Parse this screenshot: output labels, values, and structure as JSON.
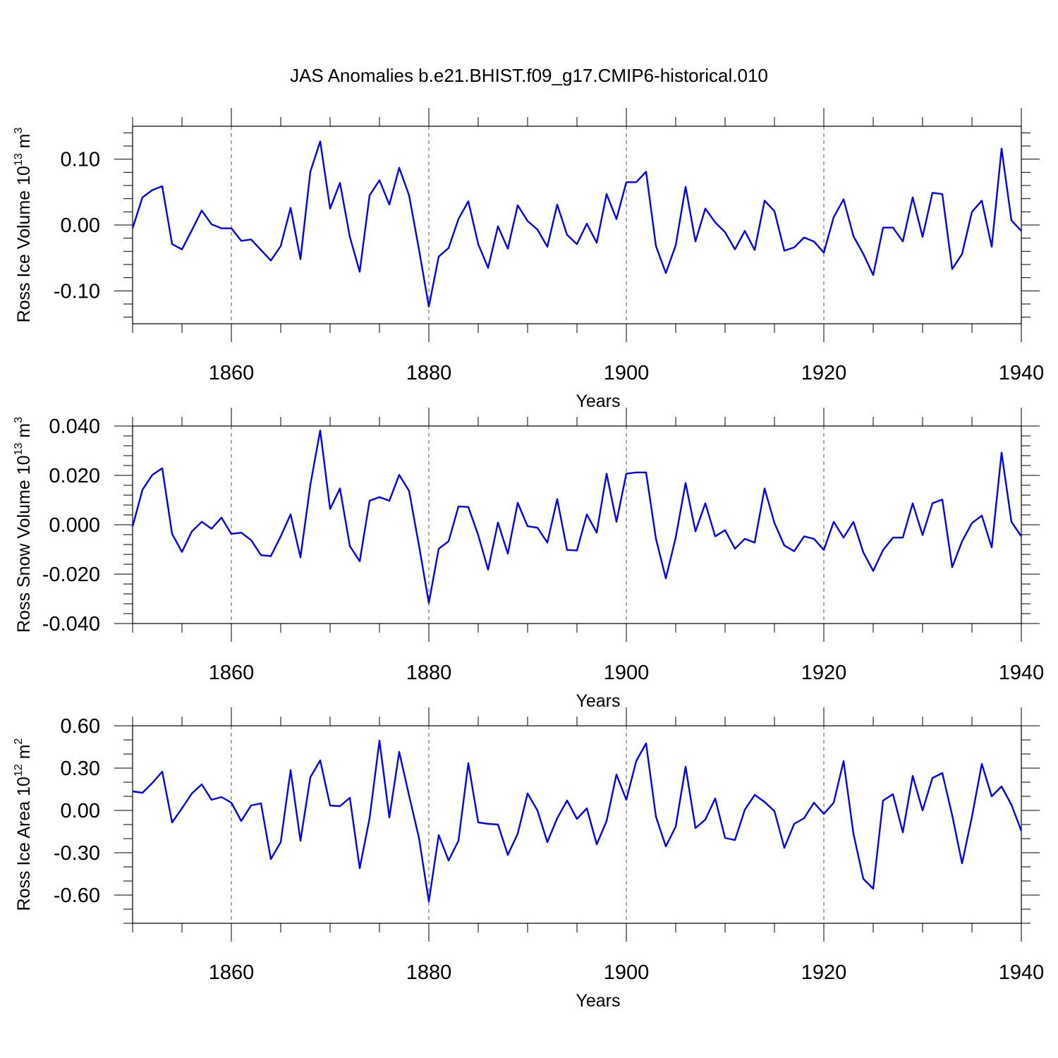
{
  "title": "JAS Anomalies b.e21.BHIST.f09_g17.CMIP6-historical.010",
  "chart_data": [
    {
      "type": "line",
      "name": "ross-ice-volume",
      "ylabel": "Ross Ice Volume 10",
      "ylabel_sup": "13",
      "ylabel_unit": "m",
      "ylabel_unit_sup": "3",
      "xlabel": "Years",
      "xlim": [
        1850,
        1940
      ],
      "ylim": [
        -0.15,
        0.15
      ],
      "xticks": [
        1860,
        1880,
        1900,
        1920,
        1940
      ],
      "xtick_labels": [
        "1860",
        "1880",
        "1900",
        "1920",
        "1940"
      ],
      "yticks": [
        0.1,
        0.0,
        -0.1
      ],
      "ytick_labels": [
        "0.10",
        "0.00",
        "-0.10"
      ],
      "ytick_minor_step": 0.02,
      "x_start": 1850,
      "values": [
        -0.005,
        0.042,
        0.053,
        0.059,
        -0.029,
        -0.037,
        -0.008,
        0.022,
        0.001,
        -0.005,
        -0.005,
        -0.024,
        -0.022,
        -0.038,
        -0.054,
        -0.032,
        0.026,
        -0.052,
        0.081,
        0.127,
        0.025,
        0.064,
        -0.018,
        -0.071,
        0.045,
        0.068,
        0.031,
        0.087,
        0.045,
        -0.037,
        -0.124,
        -0.048,
        -0.035,
        0.009,
        0.036,
        -0.029,
        -0.065,
        -0.002,
        -0.036,
        0.03,
        0.006,
        -0.007,
        -0.033,
        0.031,
        -0.015,
        -0.029,
        0.002,
        -0.027,
        0.047,
        0.009,
        0.065,
        0.065,
        0.081,
        -0.032,
        -0.073,
        -0.031,
        0.058,
        -0.025,
        0.025,
        0.004,
        -0.011,
        -0.037,
        -0.009,
        -0.038,
        0.037,
        0.021,
        -0.039,
        -0.034,
        -0.019,
        -0.025,
        -0.042,
        0.012,
        0.039,
        -0.017,
        -0.044,
        -0.076,
        -0.004,
        -0.004,
        -0.025,
        0.042,
        -0.018,
        0.049,
        0.047,
        -0.067,
        -0.044,
        0.02,
        0.037,
        -0.033,
        0.116,
        0.007,
        -0.009
      ]
    },
    {
      "type": "line",
      "name": "ross-snow-volume",
      "ylabel": "Ross Snow Volume 10",
      "ylabel_sup": "13",
      "ylabel_unit": "m",
      "ylabel_unit_sup": "3",
      "xlabel": "Years",
      "xlim": [
        1850,
        1940
      ],
      "ylim": [
        -0.04,
        0.04
      ],
      "xticks": [
        1860,
        1880,
        1900,
        1920,
        1940
      ],
      "xtick_labels": [
        "1860",
        "1880",
        "1900",
        "1920",
        "1940"
      ],
      "yticks": [
        0.04,
        0.02,
        0.0,
        -0.02,
        -0.04
      ],
      "ytick_labels": [
        "0.040",
        "0.020",
        "0.000",
        "-0.020",
        "-0.040"
      ],
      "ytick_minor_step": 0.004,
      "x_start": 1850,
      "values": [
        -0.0007,
        0.0142,
        0.0202,
        0.0229,
        -0.0037,
        -0.011,
        -0.0027,
        0.0012,
        -0.0016,
        0.0029,
        -0.0037,
        -0.0032,
        -0.0062,
        -0.0123,
        -0.0127,
        -0.0047,
        0.0042,
        -0.0132,
        0.0162,
        0.0382,
        0.0064,
        0.0147,
        -0.0086,
        -0.0148,
        0.0097,
        0.0112,
        0.0097,
        0.0202,
        0.0137,
        -0.0084,
        -0.0317,
        -0.0097,
        -0.0067,
        0.0074,
        0.0072,
        -0.0042,
        -0.0182,
        0.0009,
        -0.0117,
        0.0089,
        -0.0006,
        -0.0012,
        -0.0072,
        0.0104,
        -0.0102,
        -0.0104,
        0.0042,
        -0.0032,
        0.0207,
        0.0012,
        0.0207,
        0.0212,
        0.0212,
        -0.0057,
        -0.0217,
        -0.0052,
        0.0169,
        -0.0027,
        0.0087,
        -0.0047,
        -0.0022,
        -0.0097,
        -0.0057,
        -0.0072,
        0.0147,
        0.0007,
        -0.0084,
        -0.0107,
        -0.0047,
        -0.0057,
        -0.0102,
        0.0012,
        -0.0052,
        0.0012,
        -0.0112,
        -0.0187,
        -0.0102,
        -0.0052,
        -0.0052,
        0.0087,
        -0.0042,
        0.0087,
        0.0102,
        -0.0172,
        -0.0067,
        0.0007,
        0.0037,
        -0.0092,
        0.0292,
        0.0012,
        -0.0047
      ]
    },
    {
      "type": "line",
      "name": "ross-ice-area",
      "ylabel": "Ross Ice Area 10",
      "ylabel_sup": "12",
      "ylabel_unit": "m",
      "ylabel_unit_sup": "2",
      "xlabel": "Years",
      "xlim": [
        1850,
        1940
      ],
      "ylim": [
        -0.8,
        0.6
      ],
      "xticks": [
        1860,
        1880,
        1900,
        1920,
        1940
      ],
      "xtick_labels": [
        "1860",
        "1880",
        "1900",
        "1920",
        "1940"
      ],
      "yticks": [
        0.6,
        0.3,
        0.0,
        -0.3,
        -0.6
      ],
      "ytick_labels": [
        "0.60",
        "0.30",
        "0.00",
        "-0.30",
        "-0.60"
      ],
      "ytick_minor_step": 0.1,
      "x_start": 1850,
      "values": [
        0.135,
        0.125,
        0.195,
        0.275,
        -0.085,
        0.015,
        0.12,
        0.185,
        0.075,
        0.095,
        0.055,
        -0.075,
        0.035,
        0.05,
        -0.345,
        -0.225,
        0.285,
        -0.215,
        0.235,
        0.355,
        0.035,
        0.03,
        0.09,
        -0.41,
        -0.055,
        0.495,
        -0.05,
        0.415,
        0.105,
        -0.195,
        -0.645,
        -0.175,
        -0.355,
        -0.215,
        0.335,
        -0.085,
        -0.095,
        -0.1,
        -0.315,
        -0.165,
        0.12,
        0.0,
        -0.225,
        -0.055,
        0.07,
        -0.06,
        0.015,
        -0.24,
        -0.075,
        0.255,
        0.075,
        0.35,
        0.475,
        -0.045,
        -0.255,
        -0.115,
        0.31,
        -0.125,
        -0.065,
        0.085,
        -0.195,
        -0.21,
        0.005,
        0.11,
        0.06,
        -0.005,
        -0.265,
        -0.095,
        -0.055,
        0.055,
        -0.025,
        0.055,
        0.35,
        -0.165,
        -0.485,
        -0.555,
        0.07,
        0.115,
        -0.155,
        0.245,
        0.0,
        0.23,
        0.265,
        -0.035,
        -0.375,
        -0.045,
        0.33,
        0.1,
        0.17,
        0.04,
        -0.145
      ]
    }
  ]
}
